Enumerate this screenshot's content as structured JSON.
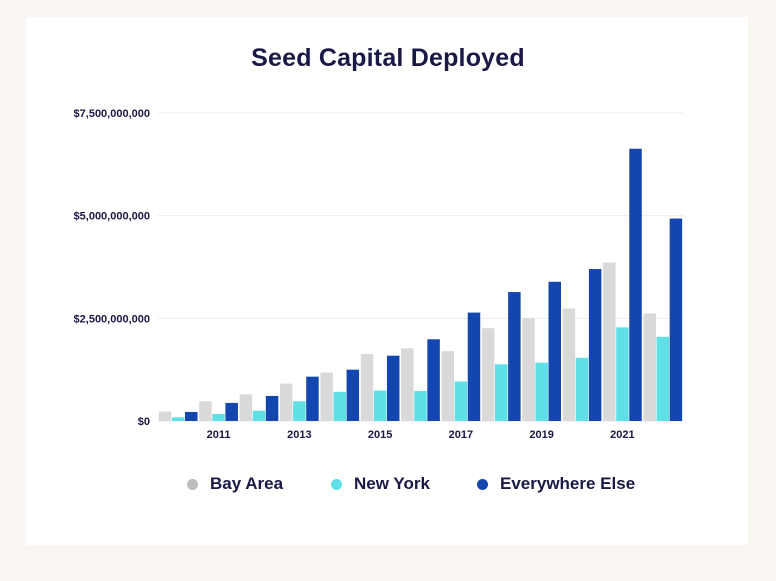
{
  "chart_data": {
    "type": "bar",
    "title": "Seed Capital Deployed",
    "xlabel": "",
    "ylabel": "",
    "categories": [
      "2010",
      "2011",
      "2012",
      "2013",
      "2014",
      "2015",
      "2016",
      "2017",
      "2018",
      "2019",
      "2020",
      "2021",
      "2022"
    ],
    "x_tick_labels": [
      "2011",
      "2013",
      "2015",
      "2017",
      "2019",
      "2021"
    ],
    "y_tick_labels": [
      "$0",
      "$2,500,000,000",
      "$5,000,000,000",
      "$7,500,000,000"
    ],
    "ylim": [
      0,
      7500000000
    ],
    "grid": true,
    "legend_position": "bottom",
    "series": [
      {
        "name": "Bay Area",
        "color": "#d9d9d9",
        "values": [
          230000000,
          480000000,
          650000000,
          910000000,
          1180000000,
          1630000000,
          1770000000,
          1700000000,
          2260000000,
          2510000000,
          2740000000,
          3860000000,
          2620000000
        ]
      },
      {
        "name": "New York",
        "color": "#5ee0e6",
        "values": [
          90000000,
          170000000,
          250000000,
          480000000,
          710000000,
          740000000,
          730000000,
          960000000,
          1380000000,
          1420000000,
          1540000000,
          2280000000,
          2050000000
        ]
      },
      {
        "name": "Everywhere Else",
        "color": "#1446b0",
        "values": [
          220000000,
          440000000,
          610000000,
          1080000000,
          1250000000,
          1590000000,
          1990000000,
          2640000000,
          3140000000,
          3390000000,
          3700000000,
          6630000000,
          4930000000
        ]
      }
    ]
  }
}
